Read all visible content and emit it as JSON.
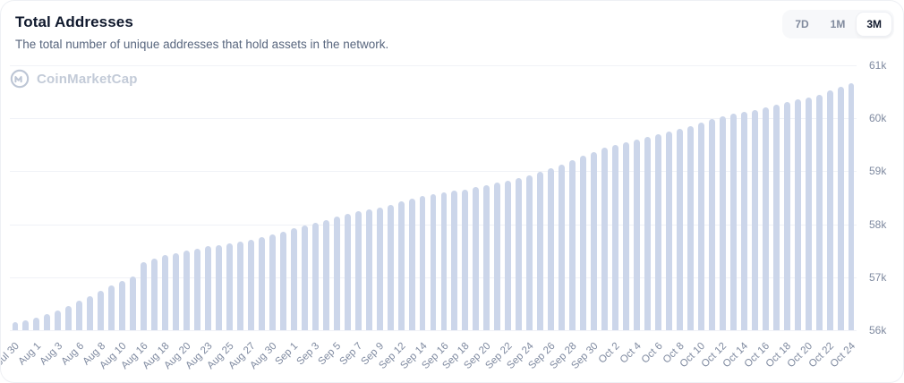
{
  "header": {
    "title": "Total Addresses",
    "subtitle": "The total number of unique addresses that hold assets in the network."
  },
  "range_buttons": [
    {
      "label": "7D",
      "active": false
    },
    {
      "label": "1M",
      "active": false
    },
    {
      "label": "3M",
      "active": true
    }
  ],
  "watermark": {
    "text": "CoinMarketCap",
    "logo_icon": "coinmarketcap-logo"
  },
  "colors": {
    "bar": "#ccd6ea",
    "grid": "#f0f2f7",
    "axis_text": "#7f8aa0",
    "title_text": "#10192d",
    "subtitle_text": "#58667e",
    "watermark": "#c3cbd8",
    "active_range_bg": "#ffffff",
    "toggle_bg": "#f7f8fa"
  },
  "chart_data": {
    "type": "bar",
    "title": "Total Addresses",
    "xlabel": "",
    "ylabel": "",
    "grid": true,
    "legend": false,
    "ylim": [
      56000,
      61000
    ],
    "y_ticks": [
      "56k",
      "57k",
      "58k",
      "59k",
      "60k",
      "61k"
    ],
    "y_axis_position": "right",
    "x_tick_labels": [
      "Jul 30",
      "Aug 1",
      "Aug 3",
      "Aug 6",
      "Aug 8",
      "Aug 10",
      "Aug 16",
      "Aug 18",
      "Aug 20",
      "Aug 23",
      "Aug 25",
      "Aug 27",
      "Aug 30",
      "Sep 1",
      "Sep 3",
      "Sep 5",
      "Sep 7",
      "Sep 9",
      "Sep 12",
      "Sep 14",
      "Sep 16",
      "Sep 18",
      "Sep 20",
      "Sep 22",
      "Sep 24",
      "Sep 26",
      "Sep 28",
      "Sep 30",
      "Oct 2",
      "Oct 4",
      "Oct 6",
      "Oct 8",
      "Oct 10",
      "Oct 12",
      "Oct 14",
      "Oct 16",
      "Oct 18",
      "Oct 20",
      "Oct 22",
      "Oct 24"
    ],
    "x": [
      "Jul 30",
      "Jul 31",
      "Aug 1",
      "Aug 2",
      "Aug 3",
      "Aug 4",
      "Aug 6",
      "Aug 7",
      "Aug 8",
      "Aug 9",
      "Aug 10",
      "Aug 11",
      "Aug 16",
      "Aug 17",
      "Aug 18",
      "Aug 19",
      "Aug 20",
      "Aug 21",
      "Aug 23",
      "Aug 24",
      "Aug 25",
      "Aug 26",
      "Aug 27",
      "Aug 28",
      "Aug 30",
      "Aug 31",
      "Sep 1",
      "Sep 2",
      "Sep 3",
      "Sep 4",
      "Sep 5",
      "Sep 6",
      "Sep 7",
      "Sep 8",
      "Sep 9",
      "Sep 10",
      "Sep 12",
      "Sep 13",
      "Sep 14",
      "Sep 15",
      "Sep 16",
      "Sep 17",
      "Sep 18",
      "Sep 19",
      "Sep 20",
      "Sep 21",
      "Sep 22",
      "Sep 23",
      "Sep 24",
      "Sep 25",
      "Sep 26",
      "Sep 27",
      "Sep 28",
      "Sep 29",
      "Sep 30",
      "Oct 1",
      "Oct 2",
      "Oct 3",
      "Oct 4",
      "Oct 5",
      "Oct 6",
      "Oct 7",
      "Oct 8",
      "Oct 9",
      "Oct 10",
      "Oct 11",
      "Oct 12",
      "Oct 13",
      "Oct 14",
      "Oct 15",
      "Oct 16",
      "Oct 17",
      "Oct 18",
      "Oct 19",
      "Oct 20",
      "Oct 21",
      "Oct 22",
      "Oct 23",
      "Oct 24"
    ],
    "values": [
      56150,
      56190,
      56230,
      56300,
      56380,
      56460,
      56560,
      56650,
      56740,
      56840,
      56930,
      57010,
      57290,
      57360,
      57420,
      57460,
      57500,
      57540,
      57580,
      57610,
      57640,
      57670,
      57700,
      57750,
      57800,
      57860,
      57920,
      57970,
      58020,
      58080,
      58140,
      58190,
      58240,
      58280,
      58320,
      58370,
      58440,
      58490,
      58530,
      58560,
      58600,
      58630,
      58660,
      58700,
      58740,
      58780,
      58820,
      58870,
      58930,
      58990,
      59060,
      59130,
      59210,
      59290,
      59370,
      59440,
      59500,
      59550,
      59600,
      59650,
      59700,
      59750,
      59800,
      59860,
      59920,
      59980,
      60030,
      60080,
      60120,
      60160,
      60200,
      60250,
      60300,
      60350,
      60400,
      60450,
      60520,
      60590,
      60660
    ]
  }
}
